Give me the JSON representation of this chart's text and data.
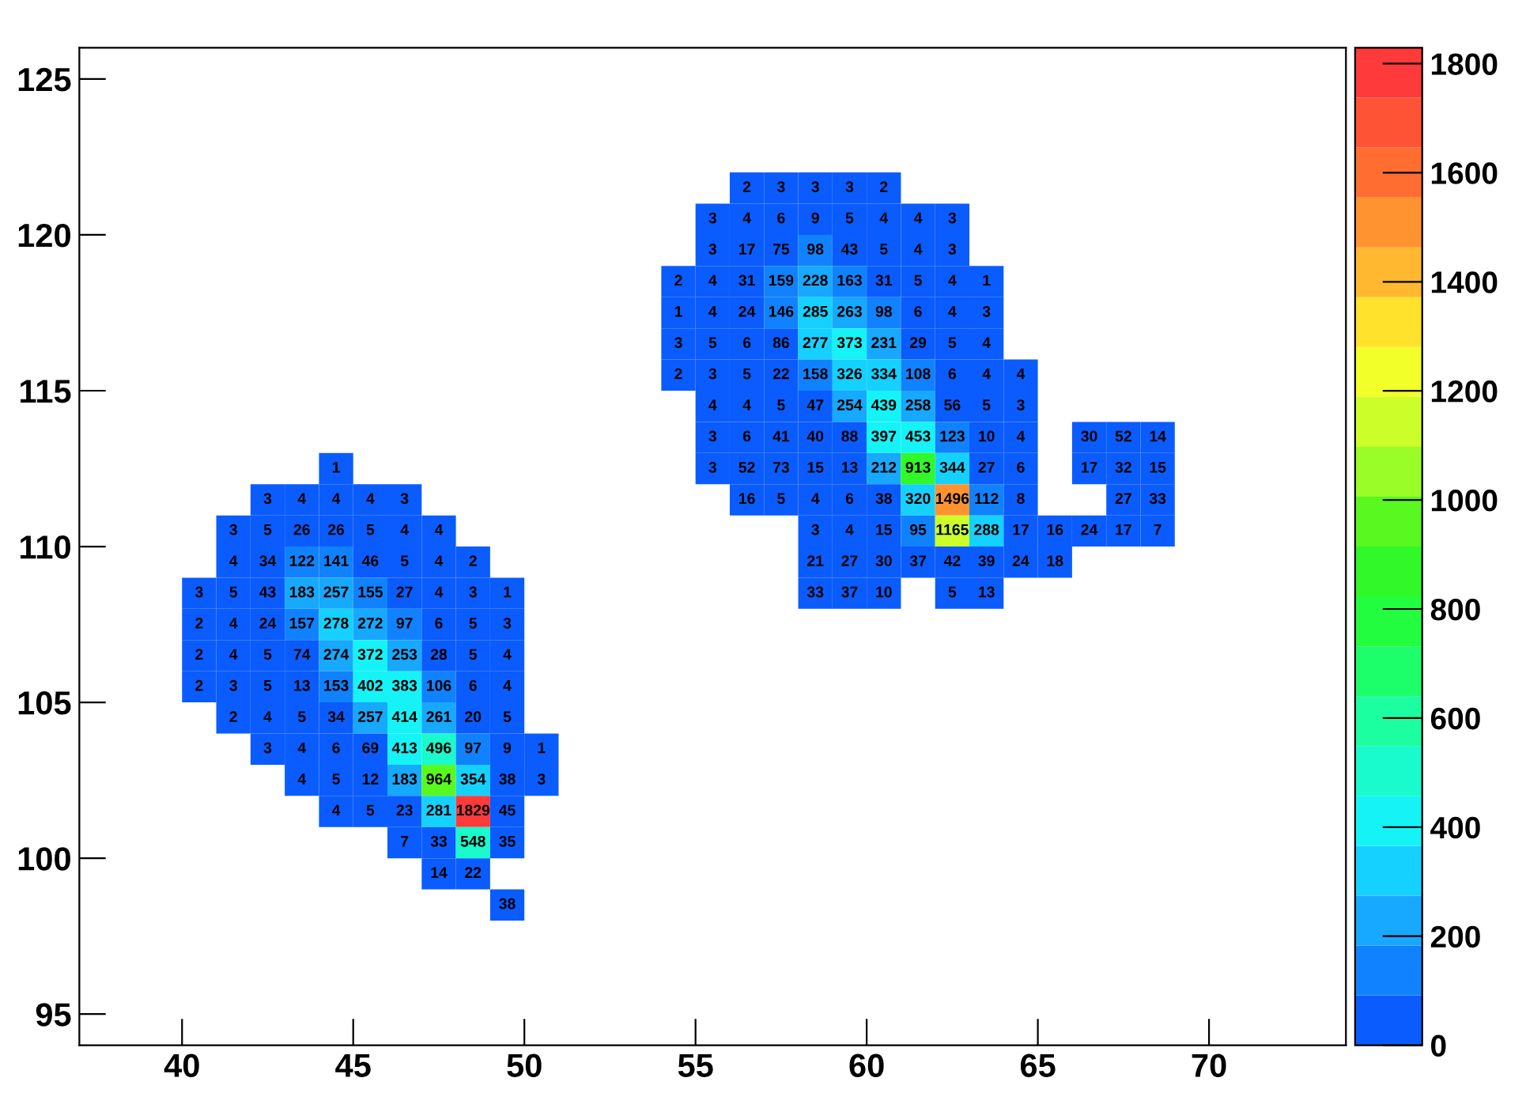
{
  "chart_data": {
    "type": "heatmap",
    "x": [
      40.5,
      41.5,
      42.5,
      43.5,
      44.5,
      45.5,
      46.5,
      47.5,
      48.5,
      49.5,
      50.5,
      51.5,
      52.5,
      53.5,
      54.5,
      55.5,
      56.5,
      57.5,
      58.5,
      59.5,
      60.5,
      61.5,
      62.5,
      63.5,
      64.5,
      65.5,
      66.5,
      67.5,
      68.5
    ],
    "y": [
      121.5,
      120.5,
      119.5,
      118.5,
      117.5,
      116.5,
      115.5,
      114.5,
      113.5,
      112.5,
      111.5,
      110.5,
      109.5,
      108.5,
      107.5,
      106.5,
      105.5,
      104.5,
      103.5,
      102.5,
      101.5,
      100.5,
      99.5,
      98.5
    ],
    "xlim": [
      37,
      74
    ],
    "ylim": [
      94,
      126
    ],
    "xticks": [
      40,
      45,
      50,
      55,
      60,
      65,
      70
    ],
    "yticks": [
      95,
      100,
      105,
      110,
      115,
      120,
      125
    ],
    "clim": [
      0,
      1829
    ],
    "cticks": [
      0,
      200,
      400,
      600,
      800,
      1000,
      1200,
      1400,
      1600,
      1800
    ],
    "data_labels": true,
    "grid": false,
    "cells": [
      [
        null,
        null,
        null,
        null,
        null,
        null,
        null,
        null,
        null,
        null,
        null,
        null,
        null,
        null,
        null,
        null,
        2,
        3,
        3,
        3,
        2,
        null,
        null,
        null,
        null,
        null,
        null,
        null,
        null
      ],
      [
        null,
        null,
        null,
        null,
        null,
        null,
        null,
        null,
        null,
        null,
        null,
        null,
        null,
        null,
        null,
        3,
        4,
        6,
        9,
        5,
        4,
        4,
        3,
        null,
        null,
        null,
        null,
        null,
        null
      ],
      [
        null,
        null,
        null,
        null,
        null,
        null,
        null,
        null,
        null,
        null,
        null,
        null,
        null,
        null,
        null,
        3,
        17,
        75,
        98,
        43,
        5,
        4,
        3,
        null,
        null,
        null,
        null,
        null,
        null
      ],
      [
        null,
        null,
        null,
        null,
        null,
        null,
        null,
        null,
        null,
        null,
        null,
        null,
        null,
        null,
        2,
        4,
        31,
        159,
        228,
        163,
        31,
        5,
        4,
        1,
        null,
        null,
        null,
        null,
        null
      ],
      [
        null,
        null,
        null,
        null,
        null,
        null,
        null,
        null,
        null,
        null,
        null,
        null,
        null,
        null,
        1,
        4,
        24,
        146,
        285,
        263,
        98,
        6,
        4,
        3,
        null,
        null,
        null,
        null,
        null
      ],
      [
        null,
        null,
        null,
        null,
        null,
        null,
        null,
        null,
        null,
        null,
        null,
        null,
        null,
        null,
        3,
        5,
        6,
        86,
        277,
        373,
        231,
        29,
        5,
        4,
        null,
        null,
        null,
        null,
        null
      ],
      [
        null,
        null,
        null,
        null,
        null,
        null,
        null,
        null,
        null,
        null,
        null,
        null,
        null,
        null,
        2,
        3,
        5,
        22,
        158,
        326,
        334,
        108,
        6,
        4,
        4,
        null,
        null,
        null,
        null
      ],
      [
        null,
        null,
        null,
        null,
        null,
        null,
        null,
        null,
        null,
        null,
        null,
        null,
        null,
        null,
        null,
        4,
        4,
        5,
        47,
        254,
        439,
        258,
        56,
        5,
        3,
        null,
        null,
        null,
        null
      ],
      [
        null,
        null,
        null,
        null,
        null,
        null,
        null,
        null,
        null,
        null,
        null,
        null,
        null,
        null,
        null,
        3,
        6,
        41,
        40,
        88,
        397,
        453,
        123,
        10,
        4,
        null,
        30,
        52,
        14
      ],
      [
        null,
        null,
        null,
        null,
        1,
        null,
        null,
        null,
        null,
        null,
        null,
        null,
        null,
        null,
        null,
        3,
        52,
        73,
        15,
        13,
        212,
        913,
        344,
        27,
        6,
        null,
        17,
        32,
        15
      ],
      [
        null,
        null,
        3,
        4,
        4,
        4,
        3,
        null,
        null,
        null,
        null,
        null,
        null,
        null,
        null,
        null,
        16,
        5,
        4,
        6,
        38,
        320,
        1496,
        112,
        8,
        null,
        null,
        27,
        33
      ],
      [
        null,
        3,
        5,
        26,
        26,
        5,
        4,
        4,
        null,
        null,
        null,
        null,
        null,
        null,
        null,
        null,
        null,
        null,
        3,
        4,
        15,
        95,
        1165,
        288,
        17,
        16,
        24,
        17,
        7
      ],
      [
        null,
        4,
        34,
        122,
        141,
        46,
        5,
        4,
        2,
        null,
        null,
        null,
        null,
        null,
        null,
        null,
        null,
        null,
        21,
        27,
        30,
        37,
        42,
        39,
        24,
        18,
        null,
        null,
        null
      ],
      [
        3,
        5,
        43,
        183,
        257,
        155,
        27,
        4,
        3,
        1,
        null,
        null,
        null,
        null,
        null,
        null,
        null,
        null,
        33,
        37,
        10,
        null,
        5,
        13,
        null,
        null,
        null,
        null,
        null
      ],
      [
        2,
        4,
        24,
        157,
        278,
        272,
        97,
        6,
        5,
        3,
        null,
        null,
        null,
        null,
        null,
        null,
        null,
        null,
        null,
        null,
        null,
        null,
        null,
        null,
        null,
        null,
        null,
        null,
        null
      ],
      [
        2,
        4,
        5,
        74,
        274,
        372,
        253,
        28,
        5,
        4,
        null,
        null,
        null,
        null,
        null,
        null,
        null,
        null,
        null,
        null,
        null,
        null,
        null,
        null,
        null,
        null,
        null,
        null,
        null
      ],
      [
        2,
        3,
        5,
        13,
        153,
        402,
        383,
        106,
        6,
        4,
        null,
        null,
        null,
        null,
        null,
        null,
        null,
        null,
        null,
        null,
        null,
        null,
        null,
        null,
        null,
        null,
        null,
        null,
        null
      ],
      [
        null,
        2,
        4,
        5,
        34,
        257,
        414,
        261,
        20,
        5,
        null,
        null,
        null,
        null,
        null,
        null,
        null,
        null,
        null,
        null,
        null,
        null,
        null,
        null,
        null,
        null,
        null,
        null,
        null
      ],
      [
        null,
        null,
        3,
        4,
        6,
        69,
        413,
        496,
        97,
        9,
        1,
        null,
        null,
        null,
        null,
        null,
        null,
        null,
        null,
        null,
        null,
        null,
        null,
        null,
        null,
        null,
        null,
        null,
        null
      ],
      [
        null,
        null,
        null,
        4,
        5,
        12,
        183,
        964,
        354,
        38,
        3,
        null,
        null,
        null,
        null,
        null,
        null,
        null,
        null,
        null,
        null,
        null,
        null,
        null,
        null,
        null,
        null,
        null,
        null
      ],
      [
        null,
        null,
        null,
        null,
        4,
        5,
        23,
        281,
        1829,
        45,
        null,
        null,
        null,
        null,
        null,
        null,
        null,
        null,
        null,
        null,
        null,
        null,
        null,
        null,
        null,
        null,
        null,
        null,
        null
      ],
      [
        null,
        null,
        null,
        null,
        null,
        null,
        7,
        33,
        548,
        35,
        null,
        null,
        null,
        null,
        null,
        null,
        null,
        null,
        null,
        null,
        null,
        null,
        null,
        null,
        null,
        null,
        null,
        null,
        null
      ],
      [
        null,
        null,
        null,
        null,
        null,
        null,
        null,
        14,
        22,
        null,
        null,
        null,
        null,
        null,
        null,
        null,
        null,
        null,
        null,
        null,
        null,
        null,
        null,
        null,
        null,
        null,
        null,
        null,
        null
      ],
      [
        null,
        null,
        null,
        null,
        null,
        null,
        null,
        null,
        null,
        38,
        null,
        null,
        null,
        null,
        null,
        null,
        null,
        null,
        null,
        null,
        null,
        null,
        null,
        null,
        null,
        null,
        null,
        null,
        null
      ]
    ]
  }
}
